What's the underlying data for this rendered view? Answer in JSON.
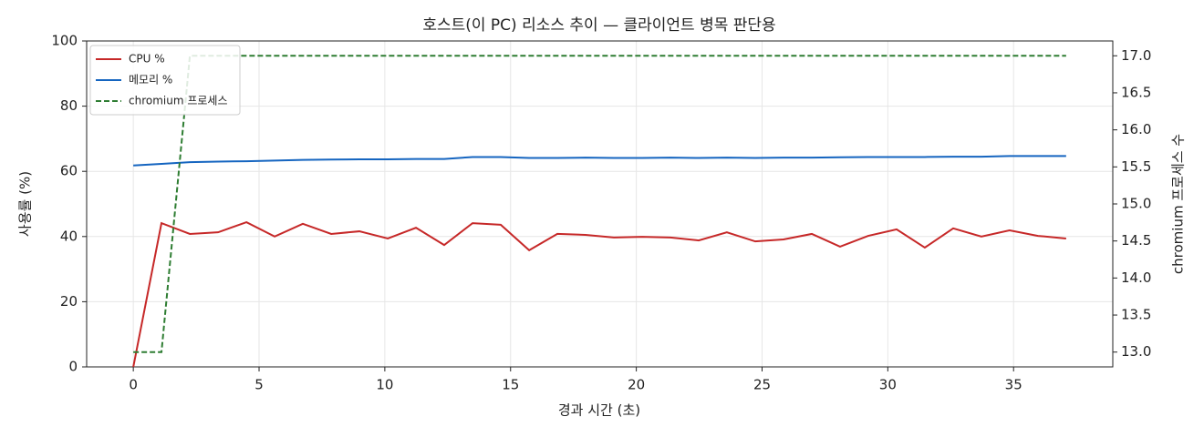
{
  "chart_data": {
    "type": "line",
    "title": "호스트(이 PC) 리소스 추이 — 클라이언트 병목 판단용",
    "xlabel": "경과 시간 (초)",
    "ylabel": "사용률 (%)",
    "y2label": "chromium 프로세스 수",
    "x": [
      0,
      1.12,
      2.25,
      3.37,
      4.5,
      5.62,
      6.74,
      7.87,
      8.99,
      10.12,
      11.24,
      12.36,
      13.49,
      14.61,
      15.74,
      16.86,
      17.98,
      19.11,
      20.23,
      21.36,
      22.48,
      23.6,
      24.73,
      25.85,
      26.98,
      28.1,
      29.22,
      30.35,
      31.47,
      32.6,
      33.72,
      34.84,
      35.97,
      37.09
    ],
    "series": [
      {
        "name": "CPU %",
        "color": "#c62828",
        "dash": false,
        "values": [
          0,
          44.1,
          40.8,
          41.3,
          44.4,
          40.0,
          43.9,
          40.8,
          41.6,
          39.4,
          42.7,
          37.4,
          44.1,
          43.6,
          35.8,
          40.8,
          40.5,
          39.7,
          39.9,
          39.7,
          38.8,
          41.3,
          38.5,
          39.1,
          40.8,
          36.9,
          40.2,
          42.2,
          36.6,
          42.5,
          40.0,
          41.9,
          40.2,
          39.4
        ]
      },
      {
        "name": "메모리 %",
        "color": "#1565c0",
        "dash": false,
        "values": [
          61.8,
          62.3,
          62.8,
          63.0,
          63.1,
          63.3,
          63.5,
          63.6,
          63.7,
          63.7,
          63.8,
          63.8,
          64.4,
          64.4,
          64.1,
          64.1,
          64.2,
          64.1,
          64.1,
          64.2,
          64.1,
          64.2,
          64.1,
          64.2,
          64.2,
          64.3,
          64.4,
          64.4,
          64.4,
          64.5,
          64.5,
          64.7,
          64.7,
          64.7
        ]
      },
      {
        "name": "chromium 프로세스",
        "color": "#2e7d32",
        "dash": true,
        "axis": "y2",
        "values": [
          13,
          13,
          17,
          17,
          17,
          17,
          17,
          17,
          17,
          17,
          17,
          17,
          17,
          17,
          17,
          17,
          17,
          17,
          17,
          17,
          17,
          17,
          17,
          17,
          17,
          17,
          17,
          17,
          17,
          17,
          17,
          17,
          17,
          17
        ]
      }
    ],
    "xlim": [
      -1.855,
      38.945
    ],
    "xticks": [
      0,
      5,
      10,
      15,
      20,
      25,
      30,
      35
    ],
    "ylim": [
      0,
      100
    ],
    "yticks": [
      0,
      20,
      40,
      60,
      80,
      100
    ],
    "y2lim": [
      12.8,
      17.2
    ],
    "y2ticks": [
      {
        "value": 13,
        "label": "13.0"
      },
      13.5,
      {
        "value": 14,
        "label": "14.0"
      },
      14.5,
      {
        "value": 15,
        "label": "15.0"
      },
      15.5,
      {
        "value": 16,
        "label": "16.0"
      },
      16.5,
      {
        "value": 17,
        "label": "17.0"
      }
    ],
    "grid": true,
    "legend": "upper left"
  }
}
